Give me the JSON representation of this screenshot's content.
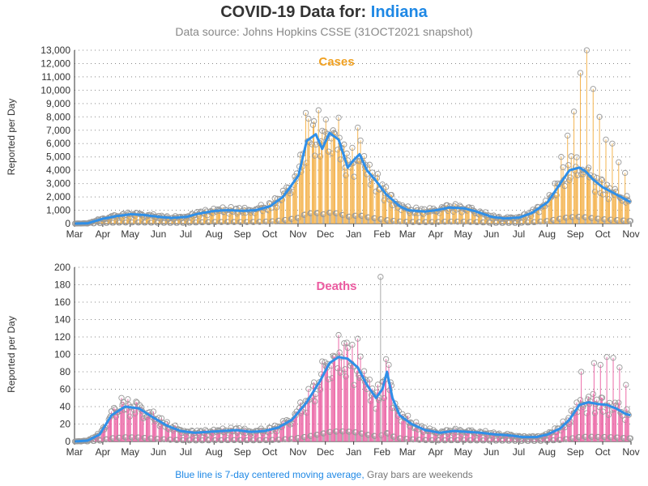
{
  "header": {
    "title_prefix": "COVID-19 Data for:",
    "title_state": "Indiana",
    "subtitle": "Data source: Johns Hopkins CSSE (31OCT2021 snapshot)"
  },
  "footer": {
    "blue_text": "Blue line is 7-day centered moving average,",
    "gray_text": "Gray bars are weekends"
  },
  "colors": {
    "cases": "#f4b450",
    "deaths": "#ec6aa8",
    "average": "#2f8fe8",
    "marker": "#999999"
  },
  "x_ticks": [
    "Mar",
    "Apr",
    "May",
    "Jun",
    "Jul",
    "Aug",
    "Sep",
    "Oct",
    "Nov",
    "Dec",
    "Jan",
    "Feb",
    "Mar",
    "Apr",
    "May",
    "Jun",
    "Jul",
    "Aug",
    "Sep",
    "Oct",
    "Nov"
  ],
  "chart_data": [
    {
      "type": "bar",
      "title": "Cases",
      "ylabel": "Reported per Day",
      "ylim": [
        0,
        13000
      ],
      "yticks": [
        0,
        1000,
        2000,
        3000,
        4000,
        5000,
        6000,
        7000,
        8000,
        9000,
        10000,
        11000,
        12000,
        13000
      ],
      "ytick_labels": [
        "0",
        "1,000",
        "2,000",
        "3,000",
        "4,000",
        "5,000",
        "6,000",
        "7,000",
        "8,000",
        "9,000",
        "10,000",
        "11,000",
        "12,000",
        "13,000"
      ],
      "x_start": "2020-03-01",
      "x_end": "2021-10-31",
      "grid": "horizontal dotted",
      "average_keys": [
        [
          "2020-03-01",
          0
        ],
        [
          "2020-03-15",
          20
        ],
        [
          "2020-03-31",
          350
        ],
        [
          "2020-04-15",
          550
        ],
        [
          "2020-05-01",
          700
        ],
        [
          "2020-05-15",
          650
        ],
        [
          "2020-06-01",
          500
        ],
        [
          "2020-06-15",
          420
        ],
        [
          "2020-07-01",
          500
        ],
        [
          "2020-07-15",
          750
        ],
        [
          "2020-08-01",
          950
        ],
        [
          "2020-08-15",
          1000
        ],
        [
          "2020-09-01",
          950
        ],
        [
          "2020-09-15",
          1000
        ],
        [
          "2020-10-01",
          1300
        ],
        [
          "2020-10-15",
          2000
        ],
        [
          "2020-11-01",
          3600
        ],
        [
          "2020-11-10",
          6200
        ],
        [
          "2020-11-20",
          6700
        ],
        [
          "2020-11-27",
          5600
        ],
        [
          "2020-12-05",
          6800
        ],
        [
          "2020-12-15",
          6300
        ],
        [
          "2020-12-25",
          4200
        ],
        [
          "2021-01-01",
          4800
        ],
        [
          "2021-01-07",
          5200
        ],
        [
          "2021-01-15",
          4000
        ],
        [
          "2021-01-25",
          3200
        ],
        [
          "2021-02-05",
          2200
        ],
        [
          "2021-02-20",
          1300
        ],
        [
          "2021-03-01",
          1000
        ],
        [
          "2021-03-20",
          900
        ],
        [
          "2021-04-01",
          1000
        ],
        [
          "2021-04-15",
          1200
        ],
        [
          "2021-05-01",
          1150
        ],
        [
          "2021-05-15",
          900
        ],
        [
          "2021-06-01",
          500
        ],
        [
          "2021-06-15",
          380
        ],
        [
          "2021-07-01",
          450
        ],
        [
          "2021-07-15",
          800
        ],
        [
          "2021-08-01",
          1600
        ],
        [
          "2021-08-15",
          3000
        ],
        [
          "2021-08-25",
          4000
        ],
        [
          "2021-09-05",
          4200
        ],
        [
          "2021-09-12",
          3900
        ],
        [
          "2021-09-20",
          3300
        ],
        [
          "2021-10-01",
          2700
        ],
        [
          "2021-10-15",
          2200
        ],
        [
          "2021-10-31",
          1600
        ]
      ],
      "weekend_spikes": [
        [
          "2020-11-09",
          8300
        ],
        [
          "2020-11-23",
          8500
        ],
        [
          "2020-12-01",
          7800
        ],
        [
          "2021-01-05",
          7200
        ],
        [
          "2021-08-16",
          5000
        ],
        [
          "2021-08-23",
          6600
        ],
        [
          "2021-08-30",
          8400
        ],
        [
          "2021-09-06",
          11300
        ],
        [
          "2021-09-13",
          13000
        ],
        [
          "2021-09-20",
          10100
        ],
        [
          "2021-09-27",
          8000
        ],
        [
          "2021-10-04",
          6300
        ],
        [
          "2021-10-11",
          6000
        ],
        [
          "2021-10-18",
          4600
        ],
        [
          "2021-10-25",
          3800
        ]
      ]
    },
    {
      "type": "bar",
      "title": "Deaths",
      "ylabel": "Reported per Day",
      "ylim": [
        0,
        200
      ],
      "yticks": [
        0,
        20,
        40,
        60,
        80,
        100,
        120,
        140,
        160,
        180,
        200
      ],
      "ytick_labels": [
        "0",
        "20",
        "40",
        "60",
        "80",
        "100",
        "120",
        "140",
        "160",
        "180",
        "200"
      ],
      "x_start": "2020-03-01",
      "x_end": "2021-10-31",
      "grid": "horizontal dotted",
      "average_keys": [
        [
          "2020-03-01",
          0
        ],
        [
          "2020-03-15",
          1
        ],
        [
          "2020-03-28",
          8
        ],
        [
          "2020-04-10",
          30
        ],
        [
          "2020-04-25",
          40
        ],
        [
          "2020-05-10",
          38
        ],
        [
          "2020-05-25",
          28
        ],
        [
          "2020-06-10",
          18
        ],
        [
          "2020-06-25",
          12
        ],
        [
          "2020-07-10",
          10
        ],
        [
          "2020-07-25",
          11
        ],
        [
          "2020-08-10",
          12
        ],
        [
          "2020-08-25",
          13
        ],
        [
          "2020-09-10",
          11
        ],
        [
          "2020-09-25",
          12
        ],
        [
          "2020-10-10",
          16
        ],
        [
          "2020-10-25",
          25
        ],
        [
          "2020-11-10",
          45
        ],
        [
          "2020-11-25",
          70
        ],
        [
          "2020-12-05",
          90
        ],
        [
          "2020-12-15",
          97
        ],
        [
          "2020-12-25",
          95
        ],
        [
          "2021-01-05",
          85
        ],
        [
          "2021-01-15",
          65
        ],
        [
          "2021-01-25",
          50
        ],
        [
          "2021-02-01",
          60
        ],
        [
          "2021-02-06",
          80
        ],
        [
          "2021-02-12",
          50
        ],
        [
          "2021-02-20",
          30
        ],
        [
          "2021-03-05",
          20
        ],
        [
          "2021-03-20",
          13
        ],
        [
          "2021-04-05",
          10
        ],
        [
          "2021-04-20",
          12
        ],
        [
          "2021-05-05",
          11
        ],
        [
          "2021-05-20",
          10
        ],
        [
          "2021-06-05",
          8
        ],
        [
          "2021-06-20",
          7
        ],
        [
          "2021-07-05",
          5
        ],
        [
          "2021-07-20",
          5
        ],
        [
          "2021-08-01",
          8
        ],
        [
          "2021-08-15",
          15
        ],
        [
          "2021-08-25",
          25
        ],
        [
          "2021-09-05",
          42
        ],
        [
          "2021-09-15",
          45
        ],
        [
          "2021-09-25",
          43
        ],
        [
          "2021-10-05",
          42
        ],
        [
          "2021-10-15",
          38
        ],
        [
          "2021-10-25",
          32
        ],
        [
          "2021-10-31",
          30
        ]
      ],
      "weekend_spikes": [
        [
          "2020-04-21",
          50
        ],
        [
          "2021-01-05",
          118
        ],
        [
          "2021-01-30",
          189
        ],
        [
          "2021-02-08",
          88
        ],
        [
          "2021-09-07",
          80
        ],
        [
          "2021-09-21",
          90
        ],
        [
          "2021-09-28",
          88
        ],
        [
          "2021-10-05",
          97
        ],
        [
          "2021-10-12",
          96
        ],
        [
          "2021-10-19",
          85
        ],
        [
          "2021-10-26",
          65
        ]
      ]
    }
  ]
}
